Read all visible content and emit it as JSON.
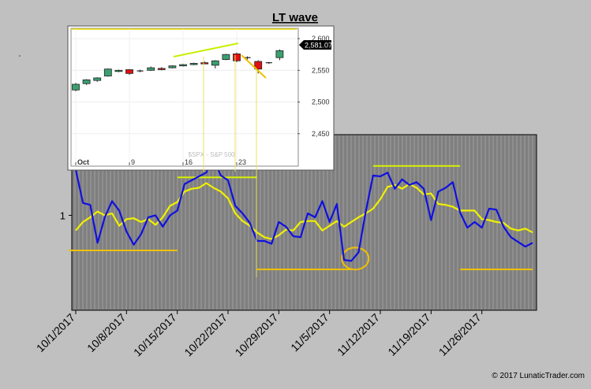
{
  "chart_data": [
    {
      "type": "line",
      "title": "LT wave",
      "xlabel": "",
      "ylabel": "",
      "x_tick_labels": [
        "10/1/2017",
        "10/8/2017",
        "10/15/2017",
        "10/22/2017",
        "10/29/2017",
        "11/5/2017",
        "11/12/2017",
        "11/19/2017",
        "11/26/2017"
      ],
      "y_tick_labels": [
        "1"
      ],
      "x": [
        "10/1/2017",
        "10/2/2017",
        "10/3/2017",
        "10/4/2017",
        "10/5/2017",
        "10/6/2017",
        "10/7/2017",
        "10/8/2017",
        "10/9/2017",
        "10/10/2017",
        "10/11/2017",
        "10/12/2017",
        "10/13/2017",
        "10/14/2017",
        "10/15/2017",
        "10/16/2017",
        "10/17/2017",
        "10/18/2017",
        "10/19/2017",
        "10/20/2017",
        "10/21/2017",
        "10/22/2017",
        "10/23/2017",
        "10/24/2017",
        "10/25/2017",
        "10/26/2017",
        "10/27/2017",
        "10/28/2017",
        "10/29/2017",
        "10/30/2017",
        "10/31/2017",
        "11/1/2017",
        "11/2/2017",
        "11/3/2017",
        "11/4/2017",
        "11/5/2017",
        "11/6/2017",
        "11/7/2017",
        "11/8/2017",
        "11/9/2017",
        "11/10/2017",
        "11/11/2017",
        "11/12/2017",
        "11/13/2017",
        "11/14/2017",
        "11/15/2017",
        "11/16/2017",
        "11/17/2017",
        "11/18/2017",
        "11/19/2017",
        "11/20/2017",
        "11/21/2017",
        "11/22/2017",
        "11/23/2017",
        "11/24/2017",
        "11/25/2017",
        "11/26/2017",
        "11/27/2017",
        "11/28/2017",
        "11/29/2017",
        "11/30/2017",
        "12/1/2017",
        "12/2/2017",
        "12/3/2017"
      ],
      "series": [
        {
          "color": "#1010e0",
          "values": [
            1.48,
            1.13,
            1.11,
            0.71,
            0.98,
            1.15,
            1.05,
            0.83,
            0.69,
            0.8,
            0.98,
            1.0,
            0.88,
            1.0,
            1.05,
            1.33,
            1.37,
            1.41,
            1.45,
            1.6,
            1.42,
            1.37,
            1.1,
            1.02,
            0.92,
            0.73,
            0.73,
            0.7,
            0.93,
            0.88,
            0.78,
            0.77,
            1.02,
            0.98,
            1.15,
            0.93,
            1.12,
            0.53,
            0.52,
            0.61,
            1.04,
            1.42,
            1.41,
            1.45,
            1.28,
            1.38,
            1.32,
            1.35,
            1.28,
            0.95,
            1.25,
            1.29,
            1.35,
            1.03,
            0.87,
            0.93,
            0.87,
            1.07,
            1.06,
            0.88,
            0.77,
            0.72,
            0.67,
            0.71
          ]
        },
        {
          "color": "#f0f000",
          "values": [
            0.84,
            0.93,
            0.98,
            1.04,
            1.0,
            1.02,
            0.89,
            0.96,
            0.97,
            0.93,
            0.96,
            0.9,
            0.98,
            1.1,
            1.14,
            1.25,
            1.28,
            1.29,
            1.34,
            1.29,
            1.25,
            1.18,
            1.02,
            0.94,
            0.89,
            0.82,
            0.77,
            0.75,
            0.79,
            0.85,
            0.84,
            0.93,
            0.94,
            0.94,
            0.84,
            0.89,
            0.94,
            0.88,
            0.93,
            0.98,
            1.02,
            1.07,
            1.17,
            1.3,
            1.32,
            1.28,
            1.33,
            1.29,
            1.22,
            1.23,
            1.12,
            1.11,
            1.09,
            1.05,
            1.05,
            1.05,
            0.96,
            0.95,
            0.93,
            0.92,
            0.86,
            0.84,
            0.86,
            0.82
          ]
        }
      ],
      "ylim": [
        0.0,
        1.85
      ],
      "grid": false,
      "annotations": [
        {
          "type": "hline",
          "y": 0.63,
          "x_from": "9/30/2017",
          "x_to": "10/15/2017",
          "color": "#f0c000"
        },
        {
          "type": "hline",
          "y": 1.4,
          "x_from": "10/15/2017",
          "x_to": "10/26/2017",
          "color": "#d8f000"
        },
        {
          "type": "hline",
          "y": 0.43,
          "x_from": "10/26/2017",
          "x_to": "11/8/2017",
          "color": "#f0c000"
        },
        {
          "type": "hline",
          "y": 1.52,
          "x_from": "11/11/2017",
          "x_to": "11/23/2017",
          "color": "#d8f000"
        },
        {
          "type": "hline",
          "y": 0.43,
          "x_from": "11/23/2017",
          "x_to": "12/3/2017",
          "color": "#f0c000"
        },
        {
          "type": "circle",
          "x": "11/8/2017",
          "y": 0.52,
          "color": "#f0c000"
        }
      ],
      "footer": "© 2017 LunaticTrader.com"
    },
    {
      "type": "candlestick",
      "watermark": "$SPX - S&P 500",
      "x_tick_labels": [
        "Oct",
        "9",
        "16",
        "23"
      ],
      "y_tick_labels": [
        "2,450",
        "2,500",
        "2,550",
        "2,600"
      ],
      "ylim": [
        2400,
        2615
      ],
      "last_price": "2,581.07",
      "price_label_color": "#000000",
      "series": [
        {
          "name": "candles",
          "values": [
            {
              "o": 2519,
              "c": 2528,
              "h": 2530,
              "l": 2517
            },
            {
              "o": 2529,
              "c": 2535,
              "h": 2536,
              "l": 2527
            },
            {
              "o": 2534,
              "c": 2538,
              "h": 2539,
              "l": 2532
            },
            {
              "o": 2541,
              "c": 2552,
              "h": 2553,
              "l": 2540
            },
            {
              "o": 2549,
              "c": 2550,
              "h": 2551,
              "l": 2547
            },
            {
              "o": 2551,
              "c": 2545,
              "h": 2552,
              "l": 2543
            },
            {
              "o": 2549,
              "c": 2549,
              "h": 2551,
              "l": 2547
            },
            {
              "o": 2550,
              "c": 2554,
              "h": 2556,
              "l": 2549
            },
            {
              "o": 2553,
              "c": 2552,
              "h": 2555,
              "l": 2550
            },
            {
              "o": 2554,
              "c": 2557,
              "h": 2558,
              "l": 2553
            },
            {
              "o": 2557,
              "c": 2559,
              "h": 2560,
              "l": 2556
            },
            {
              "o": 2559,
              "c": 2561,
              "h": 2562,
              "l": 2558
            },
            {
              "o": 2562,
              "c": 2561,
              "h": 2564,
              "l": 2560
            },
            {
              "o": 2558,
              "c": 2565,
              "h": 2566,
              "l": 2553
            },
            {
              "o": 2567,
              "c": 2575,
              "h": 2576,
              "l": 2566
            },
            {
              "o": 2576,
              "c": 2565,
              "h": 2578,
              "l": 2563
            },
            {
              "o": 2570,
              "c": 2570,
              "h": 2572,
              "l": 2567
            },
            {
              "o": 2564,
              "c": 2552,
              "h": 2566,
              "l": 2545
            },
            {
              "o": 2562,
              "c": 2562,
              "h": 2563,
              "l": 2560
            },
            {
              "o": 2570,
              "c": 2581,
              "h": 2583,
              "l": 2566
            }
          ]
        }
      ]
    }
  ]
}
